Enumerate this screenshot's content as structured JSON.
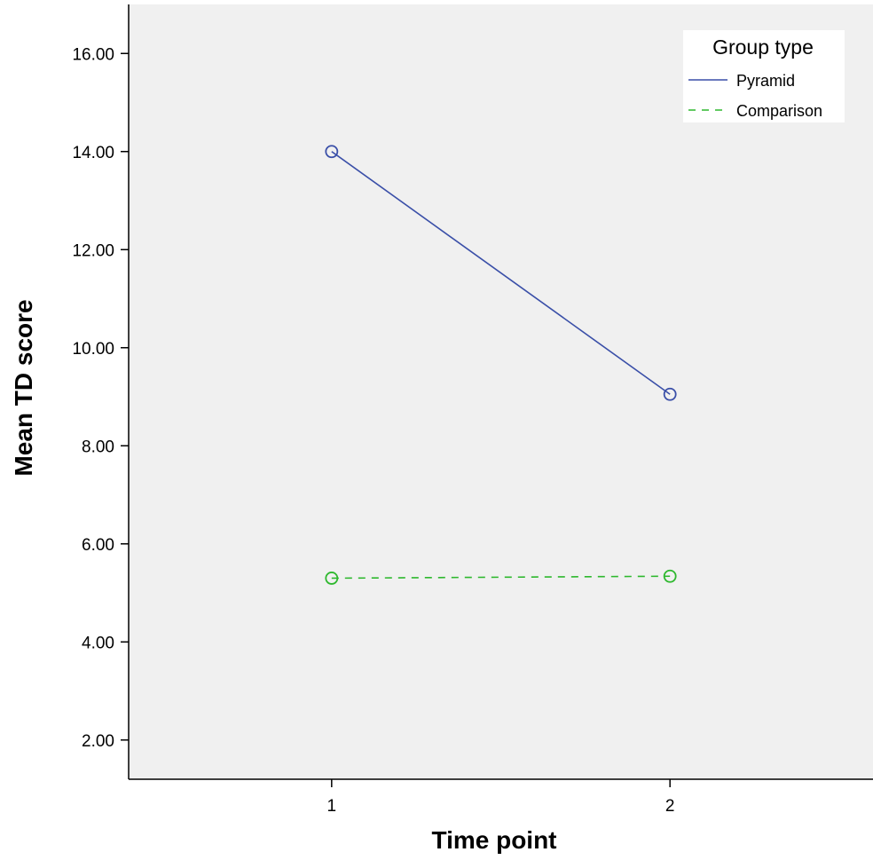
{
  "chart_data": {
    "type": "line",
    "title": "",
    "xlabel": "Time point",
    "ylabel": "Mean TD score",
    "x": [
      1,
      2
    ],
    "x_tick_labels": [
      "1",
      "2"
    ],
    "xlim": [
      0.4,
      2.6
    ],
    "ylim": [
      1.2,
      17.0
    ],
    "y_ticks": [
      2,
      4,
      6,
      8,
      10,
      12,
      14,
      16
    ],
    "y_tick_labels": [
      "2.00",
      "4.00",
      "6.00",
      "8.00",
      "10.00",
      "12.00",
      "14.00",
      "16.00"
    ],
    "grid": false,
    "plot_background": "#f0f0f0",
    "legend": {
      "title": "Group type",
      "placement": "top-right"
    },
    "series": [
      {
        "name": "Pyramid",
        "values": [
          14.0,
          9.05
        ],
        "color": "#3a4fa8",
        "line_style": "solid",
        "marker": "open-circle"
      },
      {
        "name": "Comparison",
        "values": [
          5.3,
          5.34
        ],
        "color": "#2eb82e",
        "line_style": "dashed",
        "marker": "open-circle"
      }
    ]
  }
}
